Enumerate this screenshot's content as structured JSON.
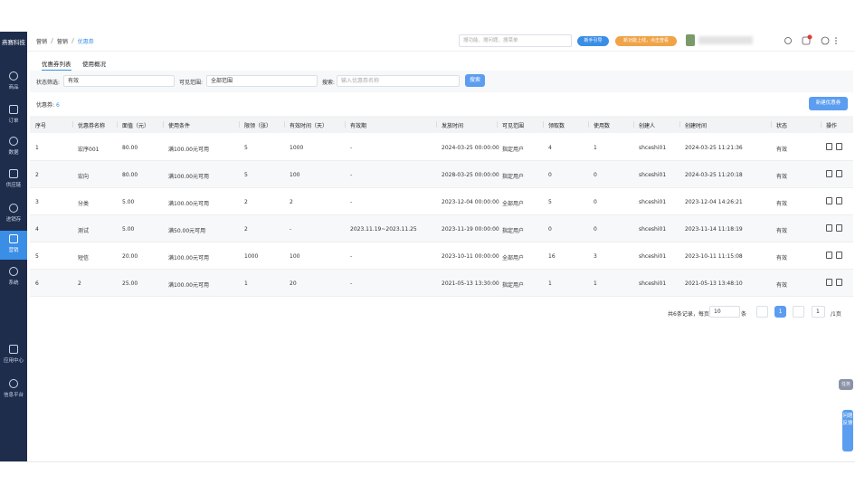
{
  "sidebar": {
    "logo": "燕赛科技",
    "items": [
      "商品",
      "订单",
      "数据",
      "供应链",
      "进销存",
      "营销",
      "系统",
      "应用中心",
      "信息平台"
    ]
  },
  "topbar": {
    "breadcrumb": [
      "营销",
      "营销",
      "优惠券"
    ],
    "search_placeholder": "搜功能、搜问题、搜菜单",
    "guide_button": "新手引导",
    "new_feature_button": "新功能上线，点击查看"
  },
  "tabs": [
    "优惠券列表",
    "使用概况"
  ],
  "filters": {
    "status_label": "状态筛选:",
    "status_value": "有效",
    "scope_label": "可见范围:",
    "scope_value": "全部范围",
    "search_label": "搜索:",
    "search_placeholder": "输入优惠券名称",
    "search_button": "搜索"
  },
  "summary": {
    "label": "优惠券:",
    "count": "6",
    "new_button": "新建优惠券"
  },
  "table": {
    "columns": [
      "序号",
      "优惠券名称",
      "面值（元）",
      "使用条件",
      "限领（张）",
      "有效时间（天）",
      "有效期",
      "发放时间",
      "可见范围",
      "领取数",
      "使用数",
      "创建人",
      "创建时间",
      "状态",
      "操作"
    ],
    "rows": [
      [
        "1",
        "宏序001",
        "80.00",
        "满100.00元可用",
        "5",
        "1000",
        "-",
        "2024-03-25 00:00:00",
        "指定用户",
        "4",
        "1",
        "shceshi01",
        "2024-03-25 11:21:36",
        "有效"
      ],
      [
        "2",
        "宏向",
        "80.00",
        "满100.00元可用",
        "5",
        "100",
        "-",
        "2028-03-25 00:00:00",
        "指定用户",
        "0",
        "0",
        "shceshi01",
        "2024-03-25 11:20:18",
        "有效"
      ],
      [
        "3",
        "分类",
        "5.00",
        "满100.00元可用",
        "2",
        "2",
        "-",
        "2023-12-04 00:00:00",
        "全部用户",
        "5",
        "0",
        "shceshi01",
        "2023-12-04 14:26:21",
        "有效"
      ],
      [
        "4",
        "测试",
        "5.00",
        "满50.00元可用",
        "2",
        "-",
        "2023.11.19~2023.11.25",
        "2023-11-19 00:00:00",
        "指定用户",
        "0",
        "0",
        "shceshi01",
        "2023-11-14 11:18:19",
        "有效"
      ],
      [
        "5",
        "短信",
        "20.00",
        "满100.00元可用",
        "1000",
        "100",
        "-",
        "2023-10-11 00:00:00",
        "全部用户",
        "16",
        "3",
        "shceshi01",
        "2023-10-11 11:15:08",
        "有效"
      ],
      [
        "6",
        "2",
        "25.00",
        "满100.00元可用",
        "1",
        "20",
        "-",
        "2021-05-13 13:30:00",
        "指定用户",
        "1",
        "1",
        "shceshi01",
        "2021-05-13 13:48:10",
        "有效"
      ]
    ]
  },
  "pagination": {
    "total_text": "共6条记录，每页",
    "page_size": "10",
    "unit": "条",
    "current_page": "1",
    "jump_value": "1",
    "total_pages": "/1页"
  },
  "float": {
    "task": "任务",
    "feedback": "问题反馈"
  }
}
